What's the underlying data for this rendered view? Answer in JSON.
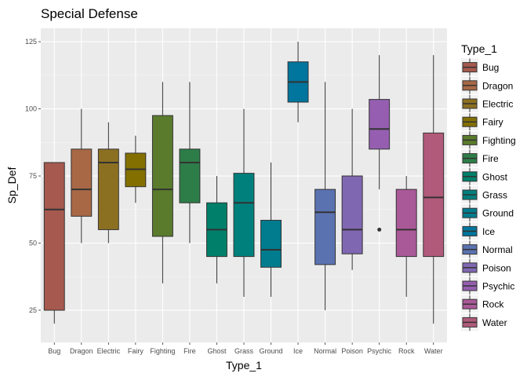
{
  "chart_data": {
    "type": "box",
    "title": "Special Defense",
    "xlabel": "Type_1",
    "ylabel": "Sp_Def",
    "ylim": [
      13,
      130
    ],
    "yticks": [
      25,
      50,
      75,
      100,
      125
    ],
    "grid": true,
    "legend_title": "Type_1",
    "legend_position": "right",
    "categories": [
      "Bug",
      "Dragon",
      "Electric",
      "Fairy",
      "Fighting",
      "Fire",
      "Ghost",
      "Grass",
      "Ground",
      "Ice",
      "Normal",
      "Poison",
      "Psychic",
      "Rock",
      "Water"
    ],
    "colors": [
      "#A6594E",
      "#A86845",
      "#8C7021",
      "#836F00",
      "#597B2B",
      "#2D7D48",
      "#00806A",
      "#00807D",
      "#007C8E",
      "#00759D",
      "#5A72B0",
      "#8067B2",
      "#955EB0",
      "#AA5998",
      "#B15A7A"
    ],
    "boxes": [
      {
        "min": 20,
        "q1": 25,
        "median": 62.5,
        "q3": 80,
        "max": 80,
        "outliers": []
      },
      {
        "min": 50,
        "q1": 60,
        "median": 70,
        "q3": 85,
        "max": 100,
        "outliers": []
      },
      {
        "min": 50,
        "q1": 55,
        "median": 80,
        "q3": 85,
        "max": 95,
        "outliers": []
      },
      {
        "min": 65,
        "q1": 71,
        "median": 77.5,
        "q3": 83.5,
        "max": 90,
        "outliers": []
      },
      {
        "min": 35,
        "q1": 52.5,
        "median": 70,
        "q3": 97.5,
        "max": 110,
        "outliers": []
      },
      {
        "min": 50,
        "q1": 65,
        "median": 80,
        "q3": 85,
        "max": 110,
        "outliers": []
      },
      {
        "min": 35,
        "q1": 45,
        "median": 55,
        "q3": 65,
        "max": 75,
        "outliers": []
      },
      {
        "min": 30,
        "q1": 45,
        "median": 65,
        "q3": 76,
        "max": 100,
        "outliers": []
      },
      {
        "min": 30,
        "q1": 41,
        "median": 47.5,
        "q3": 58.5,
        "max": 80,
        "outliers": []
      },
      {
        "min": 95,
        "q1": 102.5,
        "median": 110,
        "q3": 117.5,
        "max": 125,
        "outliers": []
      },
      {
        "min": 25,
        "q1": 42,
        "median": 61.5,
        "q3": 70,
        "max": 110,
        "outliers": []
      },
      {
        "min": 40,
        "q1": 46,
        "median": 55,
        "q3": 75,
        "max": 100,
        "outliers": []
      },
      {
        "min": 70,
        "q1": 85,
        "median": 92.5,
        "q3": 103.5,
        "max": 120,
        "outliers": [
          55
        ]
      },
      {
        "min": 30,
        "q1": 45,
        "median": 55,
        "q3": 70,
        "max": 75,
        "outliers": []
      },
      {
        "min": 20,
        "q1": 45,
        "median": 67,
        "q3": 91,
        "max": 120,
        "outliers": []
      }
    ]
  }
}
